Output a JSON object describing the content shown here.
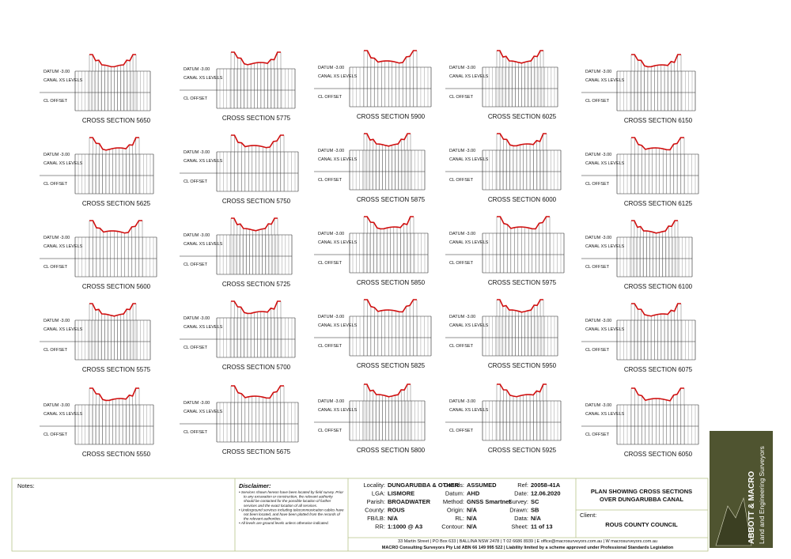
{
  "labels": {
    "datum": "DATUM -3.00",
    "levels": "CANAL XS LEVELS",
    "offset": "CL OFFSET"
  },
  "sections": [
    [
      "CROSS SECTION 5650",
      "CROSS SECTION 5775",
      "CROSS SECTION 5900",
      "CROSS SECTION 6025",
      "CROSS SECTION 6150"
    ],
    [
      "CROSS SECTION 5625",
      "CROSS SECTION 5750",
      "CROSS SECTION 5875",
      "CROSS SECTION 6000",
      "CROSS SECTION 6125"
    ],
    [
      "CROSS SECTION 5600",
      "CROSS SECTION 5725",
      "CROSS SECTION 5850",
      "CROSS SECTION 5975",
      "CROSS SECTION 6100"
    ],
    [
      "CROSS SECTION 5575",
      "CROSS SECTION 5700",
      "CROSS SECTION 5825",
      "CROSS SECTION 5950",
      "CROSS SECTION 6075"
    ],
    [
      "CROSS SECTION 5550",
      "CROSS SECTION 5675",
      "CROSS SECTION 5800",
      "CROSS SECTION 5925",
      "CROSS SECTION 6050"
    ]
  ],
  "title_block": {
    "notes": "Notes:",
    "disclaimer": {
      "title": "Disclaimer:",
      "items": [
        "Services shown hereon have been located by field survey. Prior to any excavation or construction, the relevant authority should be contacted for the possible location of further services and the exact location of all services.",
        "Underground services including telecommunication cables have not been located, and have been plotted from the records of the relevant authorities.",
        "All levels are ground levels unless otherwise indicated."
      ]
    },
    "fields": [
      [
        [
          "Locality:",
          "DUNGARUBBA & OTHER"
        ],
        [
          "LGA:",
          "LISMORE"
        ],
        [
          "Parish:",
          "BROADWATER"
        ],
        [
          "County:",
          "ROUS"
        ],
        [
          "FB/LB:",
          "N/A"
        ],
        [
          "RR:",
          "1:1000 @ A3"
        ]
      ],
      [
        [
          "Coords:",
          "ASSUMED"
        ],
        [
          "Datum:",
          "AHD"
        ],
        [
          "Method:",
          "GNSS Smartnet"
        ],
        [
          "Origin:",
          "N/A"
        ],
        [
          "RL:",
          "N/A"
        ],
        [
          "Contour:",
          "N/A"
        ]
      ],
      [
        [
          "Ref:",
          "20058-41A"
        ],
        [
          "Date:",
          "12.06.2020"
        ],
        [
          "Survey:",
          "SC"
        ],
        [
          "Drawn:",
          "SB"
        ],
        [
          "Data:",
          "N/A"
        ],
        [
          "Sheet:",
          "11 of 13"
        ]
      ]
    ],
    "plan_title": [
      "PLAN SHOWING CROSS SECTIONS",
      "OVER DUNGARUBBA CANAL"
    ],
    "client_label": "Client:",
    "client": "ROUS COUNTY COUNCIL",
    "footer": [
      "33 Martin Street | PO Box 633 | BALLINA NSW 2478 | T 02 6686 8939 | E office@macrosurveyors.com.au | W macrosurveyors.com.au",
      "MACRO Consulting Surveyors Pty Ltd  ABN 66 149 995 522 | Liability limited by a scheme approved under Professional Standards Legislation"
    ],
    "logo": [
      "ABBOTT & MACRO",
      "Land and Engineering Surveyors"
    ]
  }
}
